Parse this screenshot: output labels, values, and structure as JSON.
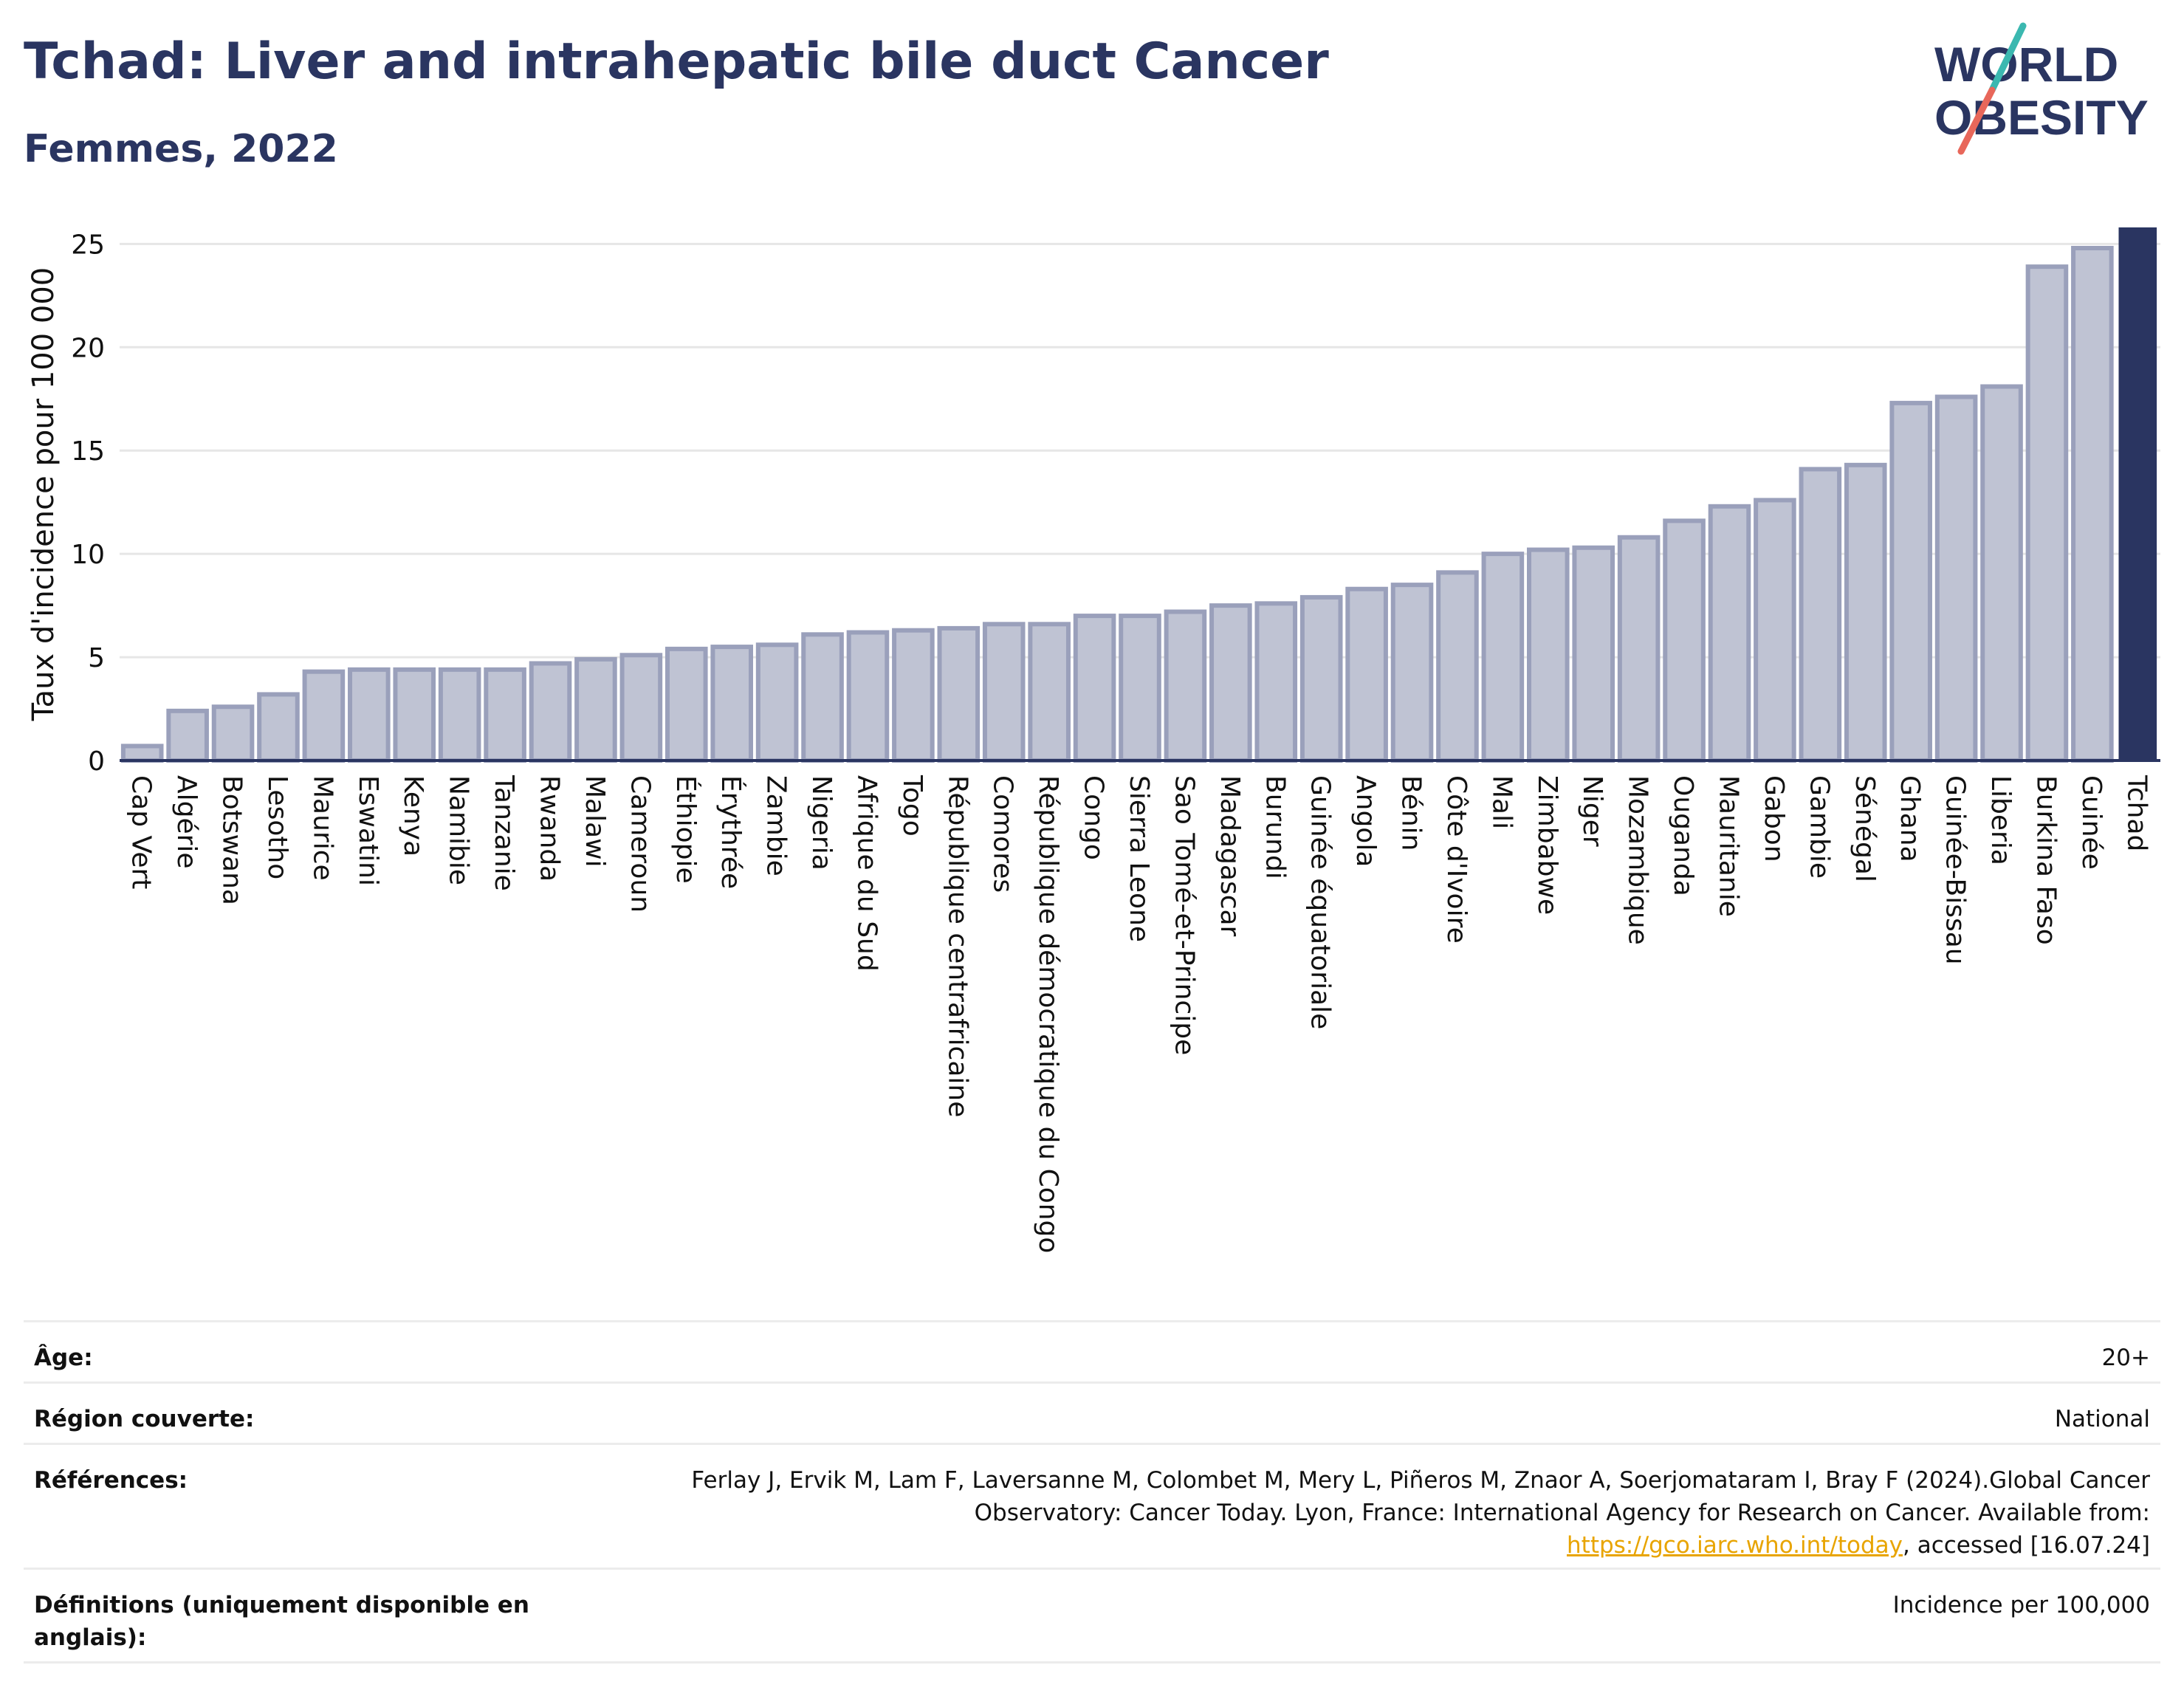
{
  "header": {
    "title": "Tchad: Liver and intrahepatic bile duct Cancer",
    "subtitle": "Femmes, 2022"
  },
  "logo": {
    "line1": "WORLD",
    "line2": "OBESITY",
    "accent_colors": [
      "#3bb8b0",
      "#e8675a"
    ]
  },
  "colors": {
    "bar_fill": "#bfc3d3",
    "bar_stroke": "#9aa0bb",
    "highlight": "#2a3561",
    "axis": "#2a3561",
    "grid": "#e6e6e6"
  },
  "chart_data": {
    "type": "bar",
    "ylabel": "Taux d'incidence pour 100 000",
    "xlabel": "",
    "ylim": [
      0,
      25.8
    ],
    "yticks": [
      0,
      5,
      10,
      15,
      20,
      25
    ],
    "grid": true,
    "highlight": "Tchad",
    "categories": [
      "Cap Vert",
      "Algérie",
      "Botswana",
      "Lesotho",
      "Maurice",
      "Eswatini",
      "Kenya",
      "Namibie",
      "Tanzanie",
      "Rwanda",
      "Malawi",
      "Cameroun",
      "Éthiopie",
      "Érythrée",
      "Zambie",
      "Nigeria",
      "Afrique du Sud",
      "Togo",
      "République centrafricaine",
      "Comores",
      "République démocratique du Congo",
      "Congo",
      "Sierra Leone",
      "Sao Tomé-et-Principe",
      "Madagascar",
      "Burundi",
      "Guinée équatoriale",
      "Angola",
      "Bénin",
      "Côte d'Ivoire",
      "Mali",
      "Zimbabwe",
      "Niger",
      "Mozambique",
      "Ouganda",
      "Mauritanie",
      "Gabon",
      "Gambie",
      "Sénégal",
      "Ghana",
      "Guinée-Bissau",
      "Liberia",
      "Burkina Faso",
      "Guinée",
      "Tchad"
    ],
    "values": [
      0.7,
      2.4,
      2.6,
      3.2,
      4.3,
      4.4,
      4.4,
      4.4,
      4.4,
      4.7,
      4.9,
      5.1,
      5.4,
      5.5,
      5.6,
      6.1,
      6.2,
      6.3,
      6.4,
      6.6,
      6.6,
      7.0,
      7.0,
      7.2,
      7.5,
      7.6,
      7.9,
      8.3,
      8.5,
      9.1,
      10.0,
      10.2,
      10.3,
      10.8,
      11.6,
      12.3,
      12.6,
      14.1,
      14.3,
      17.3,
      17.6,
      18.1,
      23.9,
      24.8,
      25.8
    ]
  },
  "meta": {
    "age_label": "Âge:",
    "age_value": "20+",
    "region_label": "Région couverte:",
    "region_value": "National",
    "refs_label": "Références:",
    "refs_text1": "Ferlay J, Ervik M, Lam F, Laversanne M, Colombet M, Mery L, Piñeros M, Znaor A, Soerjomataram I, Bray F (2024).Global Cancer Observatory: Cancer Today. Lyon, France: International Agency for Research on Cancer. Available from: ",
    "refs_link": "https://gco.iarc.who.int/today",
    "refs_text2": ", accessed [16.07.24]",
    "defs_label": "Définitions (uniquement disponible en anglais):",
    "defs_value": "Incidence per 100,000"
  }
}
